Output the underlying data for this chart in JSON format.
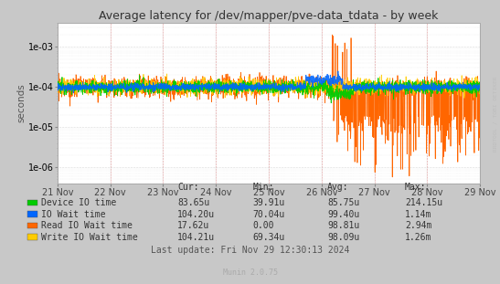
{
  "title": "Average latency for /dev/mapper/pve-data_tdata - by week",
  "ylabel": "seconds",
  "watermark": "RRDTOOL / TOBI OETIKER",
  "munin_version": "Munin 2.0.75",
  "background_color": "#c8c8c8",
  "plot_bg_color": "#ffffff",
  "title_color": "#333333",
  "x_tick_labels": [
    "21 Nov",
    "22 Nov",
    "23 Nov",
    "24 Nov",
    "25 Nov",
    "26 Nov",
    "27 Nov",
    "28 Nov",
    "29 Nov"
  ],
  "y_tick_labels": [
    "1e-06",
    "1e-05",
    "1e-04",
    "1e-03"
  ],
  "y_ticks": [
    1e-06,
    1e-05,
    0.0001,
    0.001
  ],
  "ylim": [
    4e-07,
    0.004
  ],
  "legend": [
    {
      "label": "Device IO time",
      "color": "#00cc00",
      "cur": "83.65u",
      "min": "39.91u",
      "avg": "85.75u",
      "max": "214.15u"
    },
    {
      "label": "IO Wait time",
      "color": "#0066ff",
      "cur": "104.20u",
      "min": "70.04u",
      "avg": "99.40u",
      "max": "1.14m"
    },
    {
      "label": "Read IO Wait time",
      "color": "#ff6600",
      "cur": "17.62u",
      "min": "0.00",
      "avg": "98.81u",
      "max": "2.94m"
    },
    {
      "label": "Write IO Wait time",
      "color": "#ffcc00",
      "cur": "104.21u",
      "min": "69.34u",
      "avg": "98.09u",
      "max": "1.26m"
    }
  ],
  "last_update": "Last update: Fri Nov 29 12:30:13 2024",
  "col_headers": [
    "Cur:",
    "Min:",
    "Avg:",
    "Max:"
  ]
}
